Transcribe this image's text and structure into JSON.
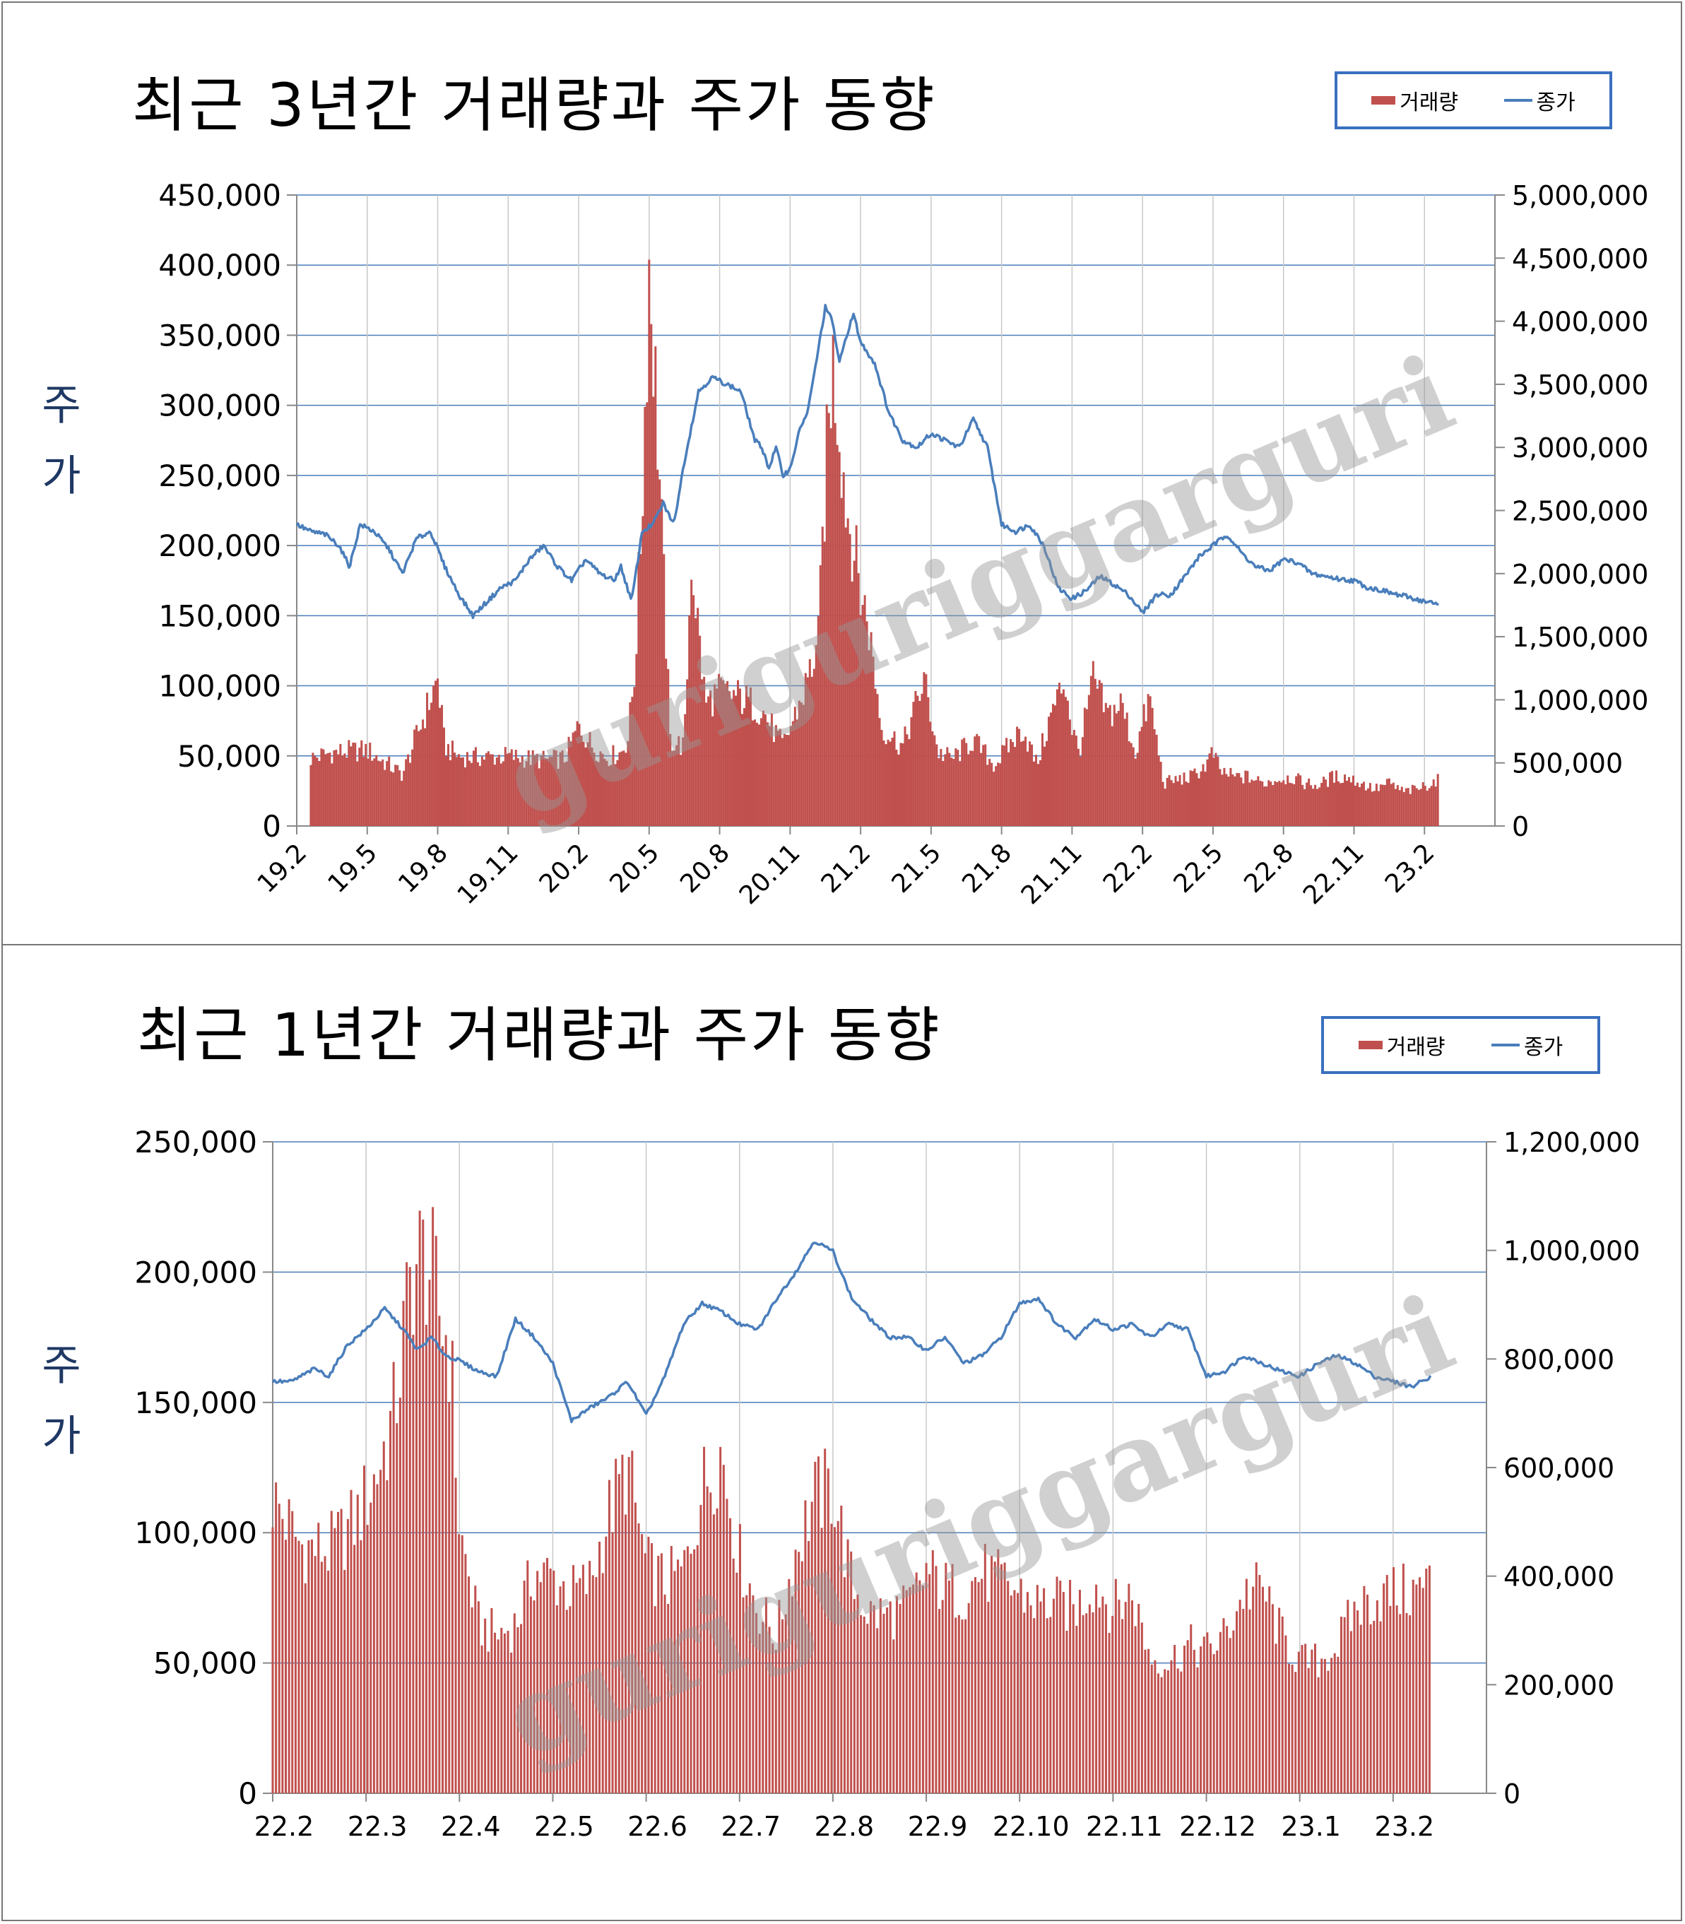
{
  "watermark": "guriguriggarguri",
  "chart_data": [
    {
      "type": "bar",
      "title": "최근 3년간 거래량과 주가 동향",
      "ylabel": "주가",
      "legend": {
        "placement": "top-right",
        "bar_label": "거래량",
        "line_label": "종가"
      },
      "x_ticks": [
        "19.2",
        "19.5",
        "19.8",
        "19.11",
        "20.2",
        "20.5",
        "20.8",
        "20.11",
        "21.2",
        "21.5",
        "21.8",
        "21.11",
        "22.2",
        "22.5",
        "22.8",
        "22.11",
        "23.2"
      ],
      "y_left_ticks": [
        "450,000",
        "400,000",
        "350,000",
        "300,000",
        "250,000",
        "200,000",
        "150,000",
        "100,000",
        "50,000",
        "0"
      ],
      "y_right_ticks": [
        "5,000,000",
        "4,500,000",
        "4,000,000",
        "3,500,000",
        "3,000,000",
        "2,500,000",
        "2,000,000",
        "1,500,000",
        "1,000,000",
        "500,000",
        "0"
      ],
      "ylim_left": [
        0,
        450000
      ],
      "ylim_right": [
        0,
        5000000
      ],
      "grid": true,
      "series": [
        {
          "name": "종가",
          "axis": "left",
          "kind": "line",
          "color": "#4a7ebb",
          "x": [
            0,
            0.2,
            0.4,
            0.6,
            0.75,
            0.9,
            1.1,
            1.3,
            1.5,
            1.7,
            1.9,
            2.1,
            2.3,
            2.5,
            2.7,
            2.9,
            3.1,
            3.3,
            3.5,
            3.7,
            3.9,
            4.1,
            4.3,
            4.5,
            4.6,
            4.75,
            4.9,
            5.05,
            5.2,
            5.35,
            5.5,
            5.7,
            5.9,
            6.1,
            6.3,
            6.5,
            6.6,
            6.7,
            6.8,
            6.9,
            7.0,
            7.15,
            7.25,
            7.4,
            7.5,
            7.6,
            7.7,
            7.8,
            7.9,
            8.0,
            8.2,
            8.4,
            8.6,
            8.8,
            9.0,
            9.2,
            9.4,
            9.6,
            9.8,
            10.0,
            10.2,
            10.4,
            10.6,
            10.8,
            11.0,
            11.2,
            11.4,
            11.6,
            11.8,
            12.0,
            12.2,
            12.4,
            12.6,
            12.8,
            13.0,
            13.2,
            13.4,
            13.6,
            13.8,
            14.0,
            14.2,
            14.4,
            14.6,
            14.8,
            15.0,
            15.2,
            15.4,
            15.6,
            15.8,
            16.0,
            16.2
          ],
          "y": [
            215000,
            210000,
            208000,
            200000,
            185000,
            215000,
            210000,
            198000,
            180000,
            205000,
            210000,
            185000,
            165000,
            150000,
            160000,
            170000,
            175000,
            190000,
            200000,
            185000,
            175000,
            190000,
            180000,
            175000,
            185000,
            160000,
            210000,
            215000,
            230000,
            215000,
            260000,
            310000,
            320000,
            315000,
            310000,
            275000,
            270000,
            255000,
            270000,
            250000,
            255000,
            285000,
            295000,
            340000,
            370000,
            360000,
            330000,
            350000,
            365000,
            345000,
            330000,
            295000,
            275000,
            270000,
            280000,
            275000,
            270000,
            290000,
            270000,
            215000,
            210000,
            215000,
            200000,
            170000,
            162000,
            168000,
            178000,
            172000,
            165000,
            152000,
            165000,
            165000,
            178000,
            192000,
            200000,
            208000,
            195000,
            185000,
            182000,
            190000,
            188000,
            180000,
            178000,
            176000,
            175000,
            170000,
            168000,
            165000,
            163000,
            160000,
            158000
          ]
        },
        {
          "name": "거래량",
          "axis": "right",
          "kind": "bar",
          "color": "#c0504d",
          "x": [
            0,
            0.5,
            1.0,
            1.5,
            2.0,
            2.1,
            2.3,
            2.5,
            3.0,
            3.5,
            3.8,
            4.0,
            4.2,
            4.4,
            4.6,
            4.7,
            4.8,
            4.9,
            5.0,
            5.1,
            5.3,
            5.5,
            5.6,
            5.7,
            5.8,
            6.0,
            6.3,
            6.6,
            6.9,
            7.2,
            7.4,
            7.5,
            7.6,
            7.7,
            7.8,
            7.9,
            8.0,
            8.1,
            8.3,
            8.6,
            8.9,
            9.0,
            9.1,
            9.3,
            9.6,
            9.9,
            10.1,
            10.3,
            10.5,
            10.7,
            10.9,
            11.0,
            11.1,
            11.3,
            11.5,
            11.7,
            11.9,
            12.1,
            12.3,
            12.5,
            12.7,
            12.9,
            13.0,
            13.1,
            13.3,
            13.5,
            13.7,
            13.9,
            14.1,
            14.3,
            14.5,
            14.7,
            14.9,
            15.1,
            15.3,
            15.5,
            15.7,
            15.9,
            16.2
          ],
          "y": [
            520000,
            600000,
            620000,
            420000,
            1200000,
            650000,
            570000,
            560000,
            570000,
            540000,
            550000,
            820000,
            650000,
            560000,
            600000,
            720000,
            1300000,
            2600000,
            4600000,
            3500000,
            700000,
            650000,
            2200000,
            1600000,
            1000000,
            1100000,
            1050000,
            950000,
            650000,
            1100000,
            1500000,
            2800000,
            3800000,
            3300000,
            2600000,
            2300000,
            1900000,
            1700000,
            800000,
            650000,
            1200000,
            900000,
            600000,
            550000,
            700000,
            500000,
            650000,
            800000,
            500000,
            900000,
            1200000,
            800000,
            600000,
            1200000,
            900000,
            1000000,
            600000,
            1050000,
            350000,
            380000,
            400000,
            500000,
            600000,
            450000,
            400000,
            400000,
            350000,
            380000,
            400000,
            350000,
            330000,
            400000,
            400000,
            350000,
            300000,
            350000,
            280000,
            300000,
            380000
          ]
        }
      ]
    },
    {
      "type": "bar",
      "title": "최근 1년간 거래량과 주가 동향",
      "ylabel": "주가",
      "legend": {
        "placement": "top-right",
        "bar_label": "거래량",
        "line_label": "종가"
      },
      "x_ticks": [
        "22.2",
        "22.3",
        "22.4",
        "22.5",
        "22.6",
        "22.7",
        "22.8",
        "22.9",
        "22.10",
        "22.11",
        "22.12",
        "23.1",
        "23.2"
      ],
      "y_left_ticks": [
        "250,000",
        "200,000",
        "150,000",
        "100,000",
        "50,000",
        "0"
      ],
      "y_right_ticks": [
        "1,200,000",
        "1,000,000",
        "800,000",
        "600,000",
        "400,000",
        "200,000",
        "0"
      ],
      "ylim_left": [
        0,
        250000
      ],
      "ylim_right": [
        0,
        1200000
      ],
      "grid": true,
      "series": [
        {
          "name": "종가",
          "axis": "left",
          "kind": "line",
          "color": "#4a7ebb",
          "x": [
            0,
            0.2,
            0.45,
            0.6,
            0.8,
            1.0,
            1.2,
            1.4,
            1.55,
            1.7,
            1.85,
            2.0,
            2.2,
            2.4,
            2.6,
            2.8,
            3.0,
            3.2,
            3.4,
            3.6,
            3.8,
            4.0,
            4.2,
            4.4,
            4.6,
            4.8,
            5.0,
            5.2,
            5.4,
            5.6,
            5.8,
            6.0,
            6.2,
            6.4,
            6.6,
            6.8,
            7.0,
            7.2,
            7.4,
            7.6,
            7.8,
            8.0,
            8.2,
            8.4,
            8.6,
            8.8,
            9.0,
            9.2,
            9.4,
            9.6,
            9.8,
            10.0,
            10.2,
            10.4,
            10.6,
            10.8,
            11.0,
            11.2,
            11.4,
            11.6,
            11.8,
            12.0,
            12.2,
            12.4
          ],
          "y": [
            158000,
            158000,
            163000,
            160000,
            172000,
            178000,
            186000,
            178000,
            170000,
            175000,
            168000,
            166000,
            162000,
            160000,
            182000,
            175000,
            165000,
            143000,
            148000,
            152000,
            158000,
            145000,
            160000,
            180000,
            188000,
            185000,
            180000,
            178000,
            190000,
            200000,
            212000,
            208000,
            190000,
            182000,
            175000,
            175000,
            170000,
            175000,
            165000,
            168000,
            175000,
            188000,
            190000,
            180000,
            175000,
            182000,
            178000,
            180000,
            175000,
            180000,
            178000,
            160000,
            162000,
            168000,
            165000,
            162000,
            160000,
            165000,
            168000,
            165000,
            160000,
            158000,
            156000,
            160000
          ]
        },
        {
          "name": "거래량",
          "axis": "right",
          "kind": "bar",
          "color": "#c0504d",
          "x": [
            0,
            0.3,
            0.6,
            0.9,
            1.1,
            1.3,
            1.5,
            1.65,
            1.8,
            1.9,
            2.0,
            2.2,
            2.4,
            2.6,
            2.8,
            3.0,
            3.2,
            3.4,
            3.6,
            3.8,
            4.0,
            4.2,
            4.4,
            4.6,
            4.8,
            5.0,
            5.2,
            5.4,
            5.6,
            5.8,
            6.0,
            6.2,
            6.4,
            6.6,
            6.8,
            7.0,
            7.2,
            7.4,
            7.6,
            7.8,
            8.0,
            8.2,
            8.4,
            8.6,
            8.8,
            9.0,
            9.2,
            9.4,
            9.6,
            9.8,
            10.0,
            10.2,
            10.4,
            10.6,
            10.8,
            11.0,
            11.2,
            11.4,
            11.6,
            11.8,
            12.0,
            12.2,
            12.4
          ],
          "y": [
            560000,
            470000,
            460000,
            520000,
            600000,
            720000,
            1000000,
            1020000,
            900000,
            850000,
            500000,
            320000,
            300000,
            320000,
            420000,
            410000,
            380000,
            400000,
            530000,
            620000,
            430000,
            400000,
            420000,
            580000,
            650000,
            450000,
            350000,
            300000,
            460000,
            560000,
            580000,
            400000,
            340000,
            340000,
            350000,
            420000,
            390000,
            380000,
            420000,
            400000,
            380000,
            360000,
            360000,
            350000,
            400000,
            350000,
            380000,
            260000,
            250000,
            280000,
            270000,
            300000,
            380000,
            390000,
            300000,
            250000,
            250000,
            280000,
            350000,
            370000,
            380000,
            380000,
            400000
          ]
        }
      ]
    }
  ]
}
